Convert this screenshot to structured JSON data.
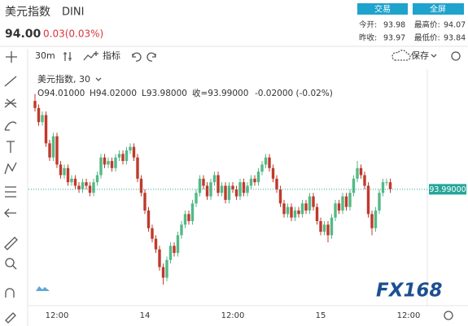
{
  "header": {
    "name": "美元指数",
    "symbol": "DINI",
    "price": "94.00",
    "change": "0.03(0.03%)",
    "buttons": [
      "交易",
      "全屏"
    ],
    "stats": [
      {
        "label": "今开:",
        "value": "93.98"
      },
      {
        "label": "最高价:",
        "value": "94.07"
      },
      {
        "label": "昨收:",
        "value": "93.97"
      },
      {
        "label": "最低价:",
        "value": "93.84"
      }
    ]
  },
  "toolbar": {
    "interval": "30m",
    "indicators": "指标",
    "save": "保存"
  },
  "legend": {
    "open": "O94.01000",
    "high": "H94.02000",
    "low": "L93.98000",
    "close": "收=93.99000",
    "change": "-0.02000 (-0.02%)"
  },
  "logo": "FX168",
  "chart_data": {
    "type": "candlestick",
    "title": "美元指数, 30",
    "categories": [
      null,
      null,
      null,
      null,
      null,
      null,
      "12:00",
      null,
      null,
      null,
      null,
      null,
      null,
      null,
      null,
      null,
      null,
      null,
      null,
      null,
      null,
      null,
      null,
      null,
      null,
      null,
      null,
      null,
      null,
      null,
      "14",
      null,
      null,
      null,
      null,
      null,
      null,
      null,
      null,
      null,
      null,
      null,
      null,
      null,
      null,
      null,
      null,
      null,
      null,
      null,
      null,
      null,
      null,
      null,
      "12:00",
      null,
      null,
      null,
      null,
      null,
      null,
      null,
      null,
      null,
      null,
      null,
      null,
      null,
      null,
      null,
      null,
      null,
      null,
      null,
      null,
      null,
      null,
      null,
      "15",
      null,
      null,
      null,
      null,
      null,
      null,
      null,
      null,
      null,
      null,
      null,
      null,
      null,
      null,
      null,
      null,
      null,
      null,
      null,
      null,
      null,
      null,
      null,
      "12:00",
      null,
      null,
      null
    ],
    "open": [
      94.24,
      94.22,
      94.18,
      94.2,
      94.12,
      94.08,
      94.14,
      94.06,
      94.03,
      94.05,
      94.01,
      94.02,
      94.0,
      93.99,
      94.01,
      94.0,
      93.98,
      94.01,
      94.03,
      94.08,
      94.06,
      94.07,
      94.05,
      94.08,
      94.09,
      94.07,
      94.1,
      94.11,
      94.08,
      94.02,
      93.98,
      93.93,
      93.88,
      93.85,
      93.82,
      93.77,
      93.74,
      93.79,
      93.83,
      93.81,
      93.86,
      93.89,
      93.92,
      93.9,
      93.95,
      93.98,
      94.02,
      94.0,
      93.97,
      94.01,
      94.03,
      93.98,
      94.0,
      93.96,
      94.0,
      93.99,
      93.97,
      94.01,
      93.98,
      94.0,
      94.02,
      94.01,
      94.04,
      94.06,
      94.08,
      94.05,
      94.02,
      93.99,
      93.95,
      93.92,
      93.94,
      93.91,
      93.93,
      93.92,
      93.95,
      93.93,
      93.97,
      93.94,
      93.9,
      93.87,
      93.89,
      93.86,
      93.91,
      93.95,
      93.93,
      93.97,
      93.94,
      93.98,
      94.02,
      94.05,
      94.03,
      94.0,
      93.92,
      93.88,
      93.93,
      93.98,
      94.01,
      94.01,
      null,
      null,
      null,
      null,
      null,
      null,
      null,
      null
    ],
    "high": [
      94.26,
      94.23,
      94.21,
      94.21,
      94.13,
      94.15,
      94.15,
      94.07,
      94.06,
      94.06,
      94.03,
      94.03,
      94.01,
      94.02,
      94.02,
      94.01,
      94.02,
      94.04,
      94.09,
      94.09,
      94.08,
      94.08,
      94.09,
      94.1,
      94.1,
      94.11,
      94.12,
      94.12,
      94.09,
      94.03,
      93.99,
      93.94,
      93.89,
      93.86,
      93.83,
      93.78,
      93.8,
      93.84,
      93.84,
      93.87,
      93.9,
      93.93,
      93.93,
      93.96,
      93.99,
      94.03,
      94.03,
      94.01,
      94.02,
      94.04,
      94.04,
      94.01,
      94.01,
      94.01,
      94.01,
      94.0,
      94.02,
      94.02,
      94.01,
      94.03,
      94.03,
      94.05,
      94.07,
      94.09,
      94.09,
      94.06,
      94.03,
      94.0,
      93.96,
      93.95,
      93.95,
      93.94,
      93.94,
      93.96,
      93.96,
      93.98,
      93.98,
      93.95,
      93.91,
      93.9,
      93.9,
      93.92,
      93.96,
      93.96,
      93.98,
      93.98,
      93.99,
      94.03,
      94.07,
      94.06,
      94.04,
      94.01,
      93.93,
      93.94,
      93.99,
      94.02,
      94.02,
      94.02,
      null,
      null,
      null,
      null,
      null,
      null,
      null,
      null
    ],
    "low": [
      94.21,
      94.17,
      94.17,
      94.11,
      94.07,
      94.07,
      94.05,
      94.02,
      94.02,
      94.0,
      94.0,
      93.99,
      93.98,
      93.98,
      93.99,
      93.97,
      93.97,
      94.0,
      94.02,
      94.05,
      94.05,
      94.04,
      94.04,
      94.07,
      94.06,
      94.06,
      94.09,
      94.07,
      94.01,
      93.97,
      93.92,
      93.87,
      93.84,
      93.81,
      93.76,
      93.72,
      93.73,
      93.78,
      93.8,
      93.8,
      93.85,
      93.88,
      93.89,
      93.89,
      93.94,
      93.97,
      93.99,
      93.96,
      93.96,
      94.0,
      93.97,
      93.97,
      93.95,
      93.95,
      93.98,
      93.96,
      93.96,
      93.97,
      93.97,
      93.99,
      94.0,
      94.0,
      94.03,
      94.05,
      94.04,
      94.01,
      93.98,
      93.94,
      93.91,
      93.91,
      93.9,
      93.9,
      93.91,
      93.91,
      93.92,
      93.92,
      93.93,
      93.89,
      93.86,
      93.86,
      93.84,
      93.85,
      93.9,
      93.92,
      93.92,
      93.93,
      93.93,
      93.97,
      94.01,
      94.02,
      93.99,
      93.91,
      93.86,
      93.87,
      93.92,
      93.97,
      94.0,
      93.98,
      null,
      null,
      null,
      null,
      null,
      null,
      null,
      null
    ],
    "close": [
      94.22,
      94.18,
      94.2,
      94.12,
      94.08,
      94.14,
      94.06,
      94.03,
      94.05,
      94.01,
      94.02,
      94.0,
      93.99,
      94.01,
      94.0,
      93.98,
      94.01,
      94.03,
      94.08,
      94.06,
      94.07,
      94.05,
      94.08,
      94.09,
      94.07,
      94.1,
      94.11,
      94.08,
      94.02,
      93.98,
      93.93,
      93.88,
      93.85,
      93.82,
      93.77,
      93.74,
      93.79,
      93.83,
      93.81,
      93.86,
      93.89,
      93.92,
      93.9,
      93.95,
      93.98,
      94.02,
      94.0,
      93.97,
      94.01,
      94.03,
      93.98,
      94.0,
      93.96,
      94.0,
      93.99,
      93.97,
      94.01,
      93.98,
      94.0,
      94.02,
      94.01,
      94.04,
      94.06,
      94.08,
      94.05,
      94.02,
      93.99,
      93.95,
      93.92,
      93.94,
      93.91,
      93.93,
      93.92,
      93.95,
      93.93,
      93.97,
      93.94,
      93.9,
      93.87,
      93.89,
      93.86,
      93.91,
      93.95,
      93.93,
      93.97,
      93.94,
      93.98,
      94.02,
      94.05,
      94.03,
      94.0,
      93.92,
      93.88,
      93.93,
      93.98,
      94.01,
      94.01,
      93.99,
      null,
      null,
      null,
      null,
      null,
      null,
      null,
      null
    ],
    "up_color": "#53b987",
    "down_color": "#c0392b",
    "ylim": [
      93.67,
      94.33
    ],
    "last_price": {
      "value": 93.99,
      "label": "93.99000"
    }
  }
}
